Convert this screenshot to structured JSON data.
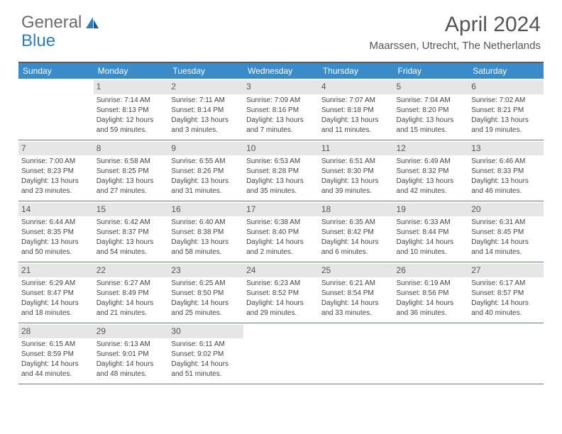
{
  "logo": {
    "text_gray": "General",
    "text_blue": "Blue"
  },
  "title": "April 2024",
  "location": "Maarssen, Utrecht, The Netherlands",
  "colors": {
    "header_bg": "#3a8bc9",
    "header_text": "#ffffff",
    "daynum_bg": "#e6e6e6",
    "border": "#5a7a99",
    "logo_gray": "#6b6b6b",
    "logo_blue": "#2e7cc0"
  },
  "day_headers": [
    "Sunday",
    "Monday",
    "Tuesday",
    "Wednesday",
    "Thursday",
    "Friday",
    "Saturday"
  ],
  "weeks": [
    [
      {
        "n": "",
        "empty": true
      },
      {
        "n": "1",
        "sr": "Sunrise: 7:14 AM",
        "ss": "Sunset: 8:13 PM",
        "d1": "Daylight: 12 hours",
        "d2": "and 59 minutes."
      },
      {
        "n": "2",
        "sr": "Sunrise: 7:11 AM",
        "ss": "Sunset: 8:14 PM",
        "d1": "Daylight: 13 hours",
        "d2": "and 3 minutes."
      },
      {
        "n": "3",
        "sr": "Sunrise: 7:09 AM",
        "ss": "Sunset: 8:16 PM",
        "d1": "Daylight: 13 hours",
        "d2": "and 7 minutes."
      },
      {
        "n": "4",
        "sr": "Sunrise: 7:07 AM",
        "ss": "Sunset: 8:18 PM",
        "d1": "Daylight: 13 hours",
        "d2": "and 11 minutes."
      },
      {
        "n": "5",
        "sr": "Sunrise: 7:04 AM",
        "ss": "Sunset: 8:20 PM",
        "d1": "Daylight: 13 hours",
        "d2": "and 15 minutes."
      },
      {
        "n": "6",
        "sr": "Sunrise: 7:02 AM",
        "ss": "Sunset: 8:21 PM",
        "d1": "Daylight: 13 hours",
        "d2": "and 19 minutes."
      }
    ],
    [
      {
        "n": "7",
        "sr": "Sunrise: 7:00 AM",
        "ss": "Sunset: 8:23 PM",
        "d1": "Daylight: 13 hours",
        "d2": "and 23 minutes."
      },
      {
        "n": "8",
        "sr": "Sunrise: 6:58 AM",
        "ss": "Sunset: 8:25 PM",
        "d1": "Daylight: 13 hours",
        "d2": "and 27 minutes."
      },
      {
        "n": "9",
        "sr": "Sunrise: 6:55 AM",
        "ss": "Sunset: 8:26 PM",
        "d1": "Daylight: 13 hours",
        "d2": "and 31 minutes."
      },
      {
        "n": "10",
        "sr": "Sunrise: 6:53 AM",
        "ss": "Sunset: 8:28 PM",
        "d1": "Daylight: 13 hours",
        "d2": "and 35 minutes."
      },
      {
        "n": "11",
        "sr": "Sunrise: 6:51 AM",
        "ss": "Sunset: 8:30 PM",
        "d1": "Daylight: 13 hours",
        "d2": "and 39 minutes."
      },
      {
        "n": "12",
        "sr": "Sunrise: 6:49 AM",
        "ss": "Sunset: 8:32 PM",
        "d1": "Daylight: 13 hours",
        "d2": "and 42 minutes."
      },
      {
        "n": "13",
        "sr": "Sunrise: 6:46 AM",
        "ss": "Sunset: 8:33 PM",
        "d1": "Daylight: 13 hours",
        "d2": "and 46 minutes."
      }
    ],
    [
      {
        "n": "14",
        "sr": "Sunrise: 6:44 AM",
        "ss": "Sunset: 8:35 PM",
        "d1": "Daylight: 13 hours",
        "d2": "and 50 minutes."
      },
      {
        "n": "15",
        "sr": "Sunrise: 6:42 AM",
        "ss": "Sunset: 8:37 PM",
        "d1": "Daylight: 13 hours",
        "d2": "and 54 minutes."
      },
      {
        "n": "16",
        "sr": "Sunrise: 6:40 AM",
        "ss": "Sunset: 8:38 PM",
        "d1": "Daylight: 13 hours",
        "d2": "and 58 minutes."
      },
      {
        "n": "17",
        "sr": "Sunrise: 6:38 AM",
        "ss": "Sunset: 8:40 PM",
        "d1": "Daylight: 14 hours",
        "d2": "and 2 minutes."
      },
      {
        "n": "18",
        "sr": "Sunrise: 6:35 AM",
        "ss": "Sunset: 8:42 PM",
        "d1": "Daylight: 14 hours",
        "d2": "and 6 minutes."
      },
      {
        "n": "19",
        "sr": "Sunrise: 6:33 AM",
        "ss": "Sunset: 8:44 PM",
        "d1": "Daylight: 14 hours",
        "d2": "and 10 minutes."
      },
      {
        "n": "20",
        "sr": "Sunrise: 6:31 AM",
        "ss": "Sunset: 8:45 PM",
        "d1": "Daylight: 14 hours",
        "d2": "and 14 minutes."
      }
    ],
    [
      {
        "n": "21",
        "sr": "Sunrise: 6:29 AM",
        "ss": "Sunset: 8:47 PM",
        "d1": "Daylight: 14 hours",
        "d2": "and 18 minutes."
      },
      {
        "n": "22",
        "sr": "Sunrise: 6:27 AM",
        "ss": "Sunset: 8:49 PM",
        "d1": "Daylight: 14 hours",
        "d2": "and 21 minutes."
      },
      {
        "n": "23",
        "sr": "Sunrise: 6:25 AM",
        "ss": "Sunset: 8:50 PM",
        "d1": "Daylight: 14 hours",
        "d2": "and 25 minutes."
      },
      {
        "n": "24",
        "sr": "Sunrise: 6:23 AM",
        "ss": "Sunset: 8:52 PM",
        "d1": "Daylight: 14 hours",
        "d2": "and 29 minutes."
      },
      {
        "n": "25",
        "sr": "Sunrise: 6:21 AM",
        "ss": "Sunset: 8:54 PM",
        "d1": "Daylight: 14 hours",
        "d2": "and 33 minutes."
      },
      {
        "n": "26",
        "sr": "Sunrise: 6:19 AM",
        "ss": "Sunset: 8:56 PM",
        "d1": "Daylight: 14 hours",
        "d2": "and 36 minutes."
      },
      {
        "n": "27",
        "sr": "Sunrise: 6:17 AM",
        "ss": "Sunset: 8:57 PM",
        "d1": "Daylight: 14 hours",
        "d2": "and 40 minutes."
      }
    ],
    [
      {
        "n": "28",
        "sr": "Sunrise: 6:15 AM",
        "ss": "Sunset: 8:59 PM",
        "d1": "Daylight: 14 hours",
        "d2": "and 44 minutes."
      },
      {
        "n": "29",
        "sr": "Sunrise: 6:13 AM",
        "ss": "Sunset: 9:01 PM",
        "d1": "Daylight: 14 hours",
        "d2": "and 48 minutes."
      },
      {
        "n": "30",
        "sr": "Sunrise: 6:11 AM",
        "ss": "Sunset: 9:02 PM",
        "d1": "Daylight: 14 hours",
        "d2": "and 51 minutes."
      },
      {
        "n": "",
        "empty": true
      },
      {
        "n": "",
        "empty": true
      },
      {
        "n": "",
        "empty": true
      },
      {
        "n": "",
        "empty": true
      }
    ]
  ]
}
